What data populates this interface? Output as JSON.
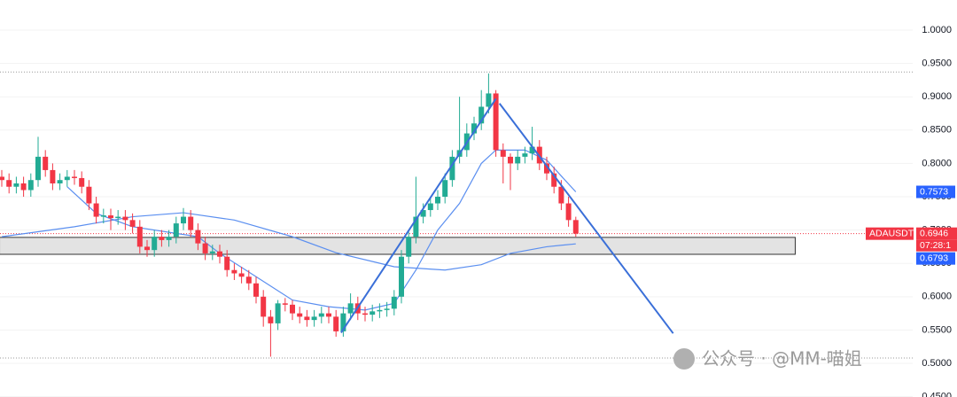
{
  "chart_data": {
    "type": "candlestick",
    "symbol": "ADAUSDT",
    "countdown": "07:28:1",
    "watermark": "公众号 · @MM-喵姐",
    "up_color": "#22ab94",
    "down_color": "#f23645",
    "open": [
      0.78,
      0.775,
      0.765,
      0.77,
      0.76,
      0.775,
      0.81,
      0.79,
      0.77,
      0.775,
      0.78,
      0.778,
      0.765,
      0.74,
      0.72,
      0.722,
      0.718,
      0.72,
      0.715,
      0.705,
      0.675,
      0.67,
      0.69,
      0.685,
      0.69,
      0.71,
      0.72,
      0.7,
      0.68,
      0.665,
      0.668,
      0.66,
      0.64,
      0.635,
      0.63,
      0.62,
      0.6,
      0.57,
      0.56,
      0.59,
      0.588,
      0.575,
      0.57,
      0.565,
      0.57,
      0.575,
      0.57,
      0.548,
      0.575,
      0.59,
      0.575,
      0.573,
      0.578,
      0.58,
      0.582,
      0.6,
      0.66,
      0.69,
      0.72,
      0.73,
      0.74,
      0.75,
      0.775,
      0.81,
      0.82,
      0.845,
      0.86,
      0.885,
      0.905,
      0.82,
      0.81,
      0.8,
      0.81,
      0.815,
      0.825,
      0.8,
      0.785,
      0.765,
      0.74,
      0.715
    ],
    "high": [
      0.79,
      0.785,
      0.78,
      0.78,
      0.785,
      0.84,
      0.82,
      0.8,
      0.785,
      0.79,
      0.79,
      0.788,
      0.775,
      0.75,
      0.732,
      0.732,
      0.73,
      0.73,
      0.725,
      0.715,
      0.685,
      0.7,
      0.7,
      0.7,
      0.72,
      0.733,
      0.73,
      0.71,
      0.69,
      0.678,
      0.678,
      0.67,
      0.65,
      0.645,
      0.64,
      0.63,
      0.61,
      0.58,
      0.595,
      0.598,
      0.595,
      0.585,
      0.58,
      0.58,
      0.585,
      0.585,
      0.58,
      0.585,
      0.605,
      0.6,
      0.585,
      0.588,
      0.59,
      0.592,
      0.61,
      0.67,
      0.7,
      0.78,
      0.74,
      0.75,
      0.76,
      0.785,
      0.82,
      0.9,
      0.86,
      0.87,
      0.91,
      0.935,
      0.91,
      0.83,
      0.815,
      0.82,
      0.825,
      0.855,
      0.835,
      0.81,
      0.795,
      0.775,
      0.75,
      0.72
    ],
    "low": [
      0.765,
      0.755,
      0.755,
      0.75,
      0.75,
      0.765,
      0.78,
      0.76,
      0.76,
      0.765,
      0.768,
      0.755,
      0.73,
      0.71,
      0.71,
      0.7,
      0.708,
      0.7,
      0.695,
      0.665,
      0.66,
      0.66,
      0.675,
      0.675,
      0.68,
      0.7,
      0.69,
      0.67,
      0.655,
      0.655,
      0.65,
      0.63,
      0.625,
      0.62,
      0.61,
      0.59,
      0.555,
      0.51,
      0.55,
      0.578,
      0.565,
      0.56,
      0.555,
      0.555,
      0.56,
      0.56,
      0.54,
      0.54,
      0.565,
      0.565,
      0.563,
      0.563,
      0.568,
      0.57,
      0.572,
      0.59,
      0.65,
      0.68,
      0.71,
      0.72,
      0.73,
      0.74,
      0.765,
      0.8,
      0.81,
      0.835,
      0.85,
      0.875,
      0.81,
      0.77,
      0.76,
      0.79,
      0.8,
      0.805,
      0.79,
      0.775,
      0.755,
      0.73,
      0.705,
      0.69
    ],
    "close": [
      0.775,
      0.765,
      0.77,
      0.76,
      0.775,
      0.81,
      0.79,
      0.77,
      0.775,
      0.78,
      0.778,
      0.765,
      0.74,
      0.72,
      0.722,
      0.718,
      0.72,
      0.715,
      0.705,
      0.675,
      0.67,
      0.69,
      0.685,
      0.69,
      0.71,
      0.72,
      0.7,
      0.68,
      0.665,
      0.668,
      0.66,
      0.64,
      0.635,
      0.63,
      0.62,
      0.6,
      0.57,
      0.56,
      0.59,
      0.588,
      0.575,
      0.57,
      0.565,
      0.57,
      0.575,
      0.57,
      0.548,
      0.575,
      0.59,
      0.575,
      0.573,
      0.578,
      0.58,
      0.582,
      0.6,
      0.66,
      0.69,
      0.72,
      0.73,
      0.74,
      0.75,
      0.775,
      0.81,
      0.82,
      0.845,
      0.86,
      0.885,
      0.905,
      0.82,
      0.81,
      0.8,
      0.81,
      0.815,
      0.825,
      0.8,
      0.785,
      0.765,
      0.74,
      0.715,
      0.6946
    ],
    "ylim": [
      0.4495,
      1.0452
    ],
    "yticks": [
      {
        "value": 0.45,
        "label": "0.4500"
      },
      {
        "value": 0.5,
        "label": "0.5000"
      },
      {
        "value": 0.55,
        "label": "0.5500"
      },
      {
        "value": 0.6,
        "label": "0.6000"
      },
      {
        "value": 0.65,
        "label": "0.6500"
      },
      {
        "value": 0.7,
        "label": "0.7000"
      },
      {
        "value": 0.75,
        "label": "0.7500"
      },
      {
        "value": 0.8,
        "label": "0.8000"
      },
      {
        "value": 0.85,
        "label": "0.8500"
      },
      {
        "value": 0.9,
        "label": "0.9000"
      },
      {
        "value": 0.95,
        "label": "0.9500"
      },
      {
        "value": 1,
        "label": "1.0000"
      }
    ],
    "moving_averages": [
      {
        "color": "#5b8ff0",
        "last": 0.7573,
        "points": [
          [
            9,
            0.765
          ],
          [
            13,
            0.725
          ],
          [
            18,
            0.705
          ],
          [
            24,
            0.695
          ],
          [
            27,
            0.69
          ],
          [
            30,
            0.665
          ],
          [
            35,
            0.63
          ],
          [
            40,
            0.595
          ],
          [
            45,
            0.585
          ],
          [
            50,
            0.58
          ],
          [
            54,
            0.59
          ],
          [
            57,
            0.64
          ],
          [
            60,
            0.7
          ],
          [
            63,
            0.74
          ],
          [
            66,
            0.8
          ],
          [
            68,
            0.82
          ],
          [
            72,
            0.82
          ],
          [
            75,
            0.805
          ],
          [
            79,
            0.7573
          ]
        ]
      },
      {
        "color": "#5b8ff0",
        "last": 0.6793,
        "points": [
          [
            0,
            0.69
          ],
          [
            10,
            0.705
          ],
          [
            18,
            0.72
          ],
          [
            25,
            0.726
          ],
          [
            32,
            0.715
          ],
          [
            40,
            0.69
          ],
          [
            46,
            0.666
          ],
          [
            54,
            0.645
          ],
          [
            61,
            0.64
          ],
          [
            66,
            0.648
          ],
          [
            70,
            0.665
          ],
          [
            75,
            0.675
          ],
          [
            79,
            0.6793
          ]
        ]
      }
    ],
    "trend_lines": [
      {
        "color": "#3a6fd8",
        "points": [
          [
            46.7,
            0.546
          ],
          [
            68,
            0.897
          ]
        ]
      },
      {
        "color": "#3a6fd8",
        "points": [
          [
            68.5,
            0.89
          ],
          [
            92.4,
            0.545
          ]
        ]
      }
    ],
    "zone": {
      "x": [
        -0.3,
        109.2
      ],
      "y": [
        0.6636,
        0.689
      ]
    },
    "price_lines": [
      0.9371,
      0.508
    ]
  }
}
